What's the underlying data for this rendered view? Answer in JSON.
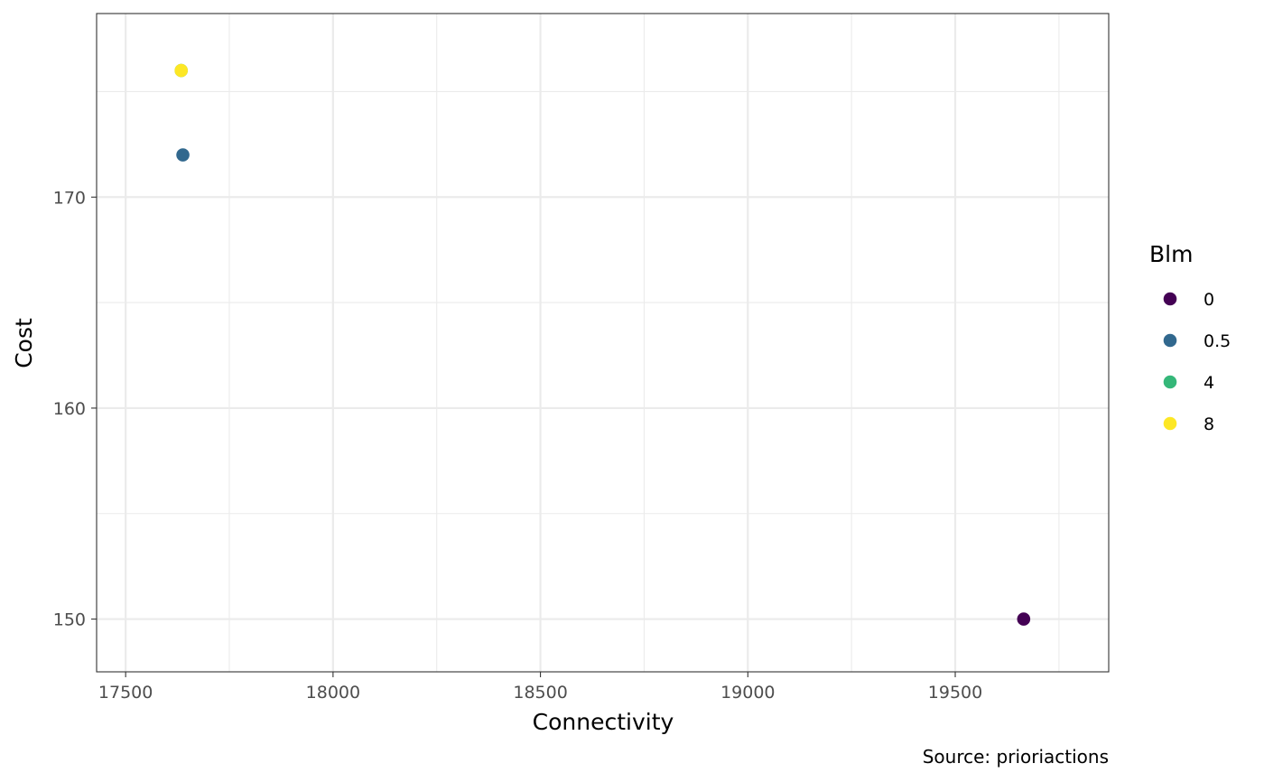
{
  "chart_data": {
    "type": "scatter",
    "xlabel": "Connectivity",
    "ylabel": "Cost",
    "caption": "Source: prioriactions",
    "xlim": [
      17430,
      19870
    ],
    "ylim": [
      147.5,
      178.7
    ],
    "x_ticks": [
      17500,
      18000,
      18500,
      19000,
      19500
    ],
    "x_tick_labels": [
      "17500",
      "18000",
      "18500",
      "19000",
      "19500"
    ],
    "y_ticks": [
      150,
      160,
      170
    ],
    "y_tick_labels": [
      "150",
      "160",
      "170"
    ],
    "x_minor_ticks": [
      17750,
      18250,
      18750,
      19250,
      19750
    ],
    "y_minor_ticks": [
      155,
      165,
      175
    ],
    "grid": true,
    "legend": {
      "title": "Blm",
      "position": "right",
      "entries": [
        {
          "label": "0",
          "color": "#440154"
        },
        {
          "label": "0.5",
          "color": "#31688e"
        },
        {
          "label": "4",
          "color": "#35b779"
        },
        {
          "label": "8",
          "color": "#fde725"
        }
      ]
    },
    "series": [
      {
        "name": "0",
        "color": "#440154",
        "points": [
          {
            "x": 19665,
            "y": 150
          }
        ]
      },
      {
        "name": "0.5",
        "color": "#31688e",
        "points": [
          {
            "x": 17638,
            "y": 172
          }
        ]
      },
      {
        "name": "4",
        "color": "#35b779",
        "points": [
          {
            "x": 17634,
            "y": 176
          }
        ]
      },
      {
        "name": "8",
        "color": "#fde725",
        "points": [
          {
            "x": 17634,
            "y": 176
          }
        ]
      }
    ]
  }
}
